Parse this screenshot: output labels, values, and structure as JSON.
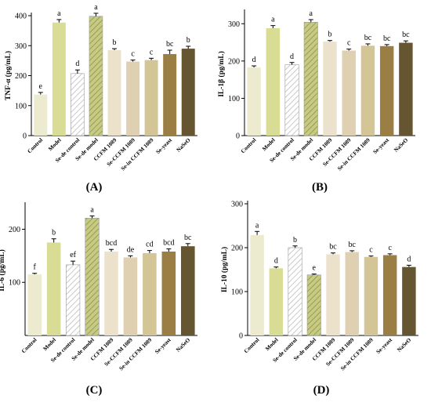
{
  "palette": {
    "Control": "#ecebd0",
    "Model": "#d9dc95",
    "Se-de control": "#ffffff",
    "Se-de model": "#c7ca82",
    "CCFM 1089": "#ece2cc",
    "Se-CCFM 1089": "#dfd0b1",
    "Se-in CCFM 1089": "#d4c596",
    "Se-yeast": "#9b7e43",
    "Na2SeO": "#655531"
  },
  "chart_data": [
    {
      "type": "bar",
      "panel_label": "(A)",
      "ylabel": "TNF-α (pg/mL)",
      "categories": [
        "Control",
        "Model",
        "Se-de control",
        "Se-de model",
        "CCFM 1089",
        "Se-CCFM 1089",
        "Se-in CCFM 1089",
        "Se-yeast",
        "NaSeO"
      ],
      "values": [
        137,
        377,
        207,
        398,
        285,
        247,
        252,
        272,
        290
      ],
      "errors": [
        7,
        10,
        12,
        10,
        5,
        5,
        6,
        13,
        8
      ],
      "significance": [
        "e",
        "a",
        "d",
        "a",
        "b",
        "c",
        "c",
        "bc",
        "b"
      ],
      "hatched": [
        false,
        false,
        true,
        true,
        false,
        false,
        false,
        false,
        false
      ],
      "ylim": [
        0,
        400
      ],
      "yticks": [
        0,
        100,
        200,
        300,
        400
      ],
      "grid": false
    },
    {
      "type": "bar",
      "panel_label": "(B)",
      "ylabel": "IL-1β (pg/mL)",
      "categories": [
        "Control",
        "Model",
        "Se-de control",
        "Se-de model",
        "CCFM 1089",
        "Se-CCFM 1089",
        "Se-in CCFM 1089",
        "Se-yeast",
        "NaSeO"
      ],
      "values": [
        183,
        288,
        190,
        304,
        252,
        228,
        241,
        240,
        249
      ],
      "errors": [
        4,
        7,
        6,
        7,
        3,
        4,
        5,
        4,
        5
      ],
      "significance": [
        "d",
        "a",
        "d",
        "a",
        "b",
        "c",
        "bc",
        "bc",
        "bc"
      ],
      "hatched": [
        false,
        false,
        true,
        true,
        false,
        false,
        false,
        false,
        false
      ],
      "ylim": [
        0,
        330
      ],
      "yticks": [
        0,
        100,
        200,
        300
      ],
      "grid": false
    },
    {
      "type": "bar",
      "panel_label": "(C)",
      "ylabel": "IL-6 (pg/mL)",
      "categories": [
        "Control",
        "Model",
        "Se-de control",
        "Se-de model",
        "CCFM 1089",
        "Se-CCFM 1089",
        "Se-in CCFM 1089",
        "Se-yeast",
        "NaSeO"
      ],
      "values": [
        115,
        175,
        133,
        221,
        158,
        147,
        155,
        158,
        168
      ],
      "errors": [
        2,
        7,
        7,
        4,
        4,
        3,
        5,
        5,
        5
      ],
      "significance": [
        "f",
        "b",
        "ef",
        "a",
        "bcd",
        "de",
        "cd",
        "bcd",
        "bc"
      ],
      "hatched": [
        false,
        false,
        true,
        true,
        false,
        false,
        false,
        false,
        false
      ],
      "ylim": [
        0,
        245
      ],
      "yticks": [
        100,
        200
      ],
      "grid": false
    },
    {
      "type": "bar",
      "panel_label": "(D)",
      "ylabel": "IL-10 (pg/mL)",
      "categories": [
        "Control",
        "Model",
        "Se-de control",
        "Se-de model",
        "CCFM 1089",
        "Se-CCFM 1089",
        "Se-in CCFM 1089",
        "Se-yeast",
        "NaSeO"
      ],
      "values": [
        229,
        153,
        200,
        138,
        185,
        190,
        179,
        183,
        156
      ],
      "errors": [
        8,
        3,
        4,
        2,
        3,
        3,
        2,
        3,
        4
      ],
      "significance": [
        "a",
        "d",
        "b",
        "e",
        "bc",
        "bc",
        "c",
        "c",
        "d"
      ],
      "hatched": [
        false,
        false,
        true,
        true,
        false,
        false,
        false,
        false,
        false
      ],
      "ylim": [
        0,
        300
      ],
      "yticks": [
        0,
        100,
        200,
        300
      ],
      "grid": false
    }
  ]
}
